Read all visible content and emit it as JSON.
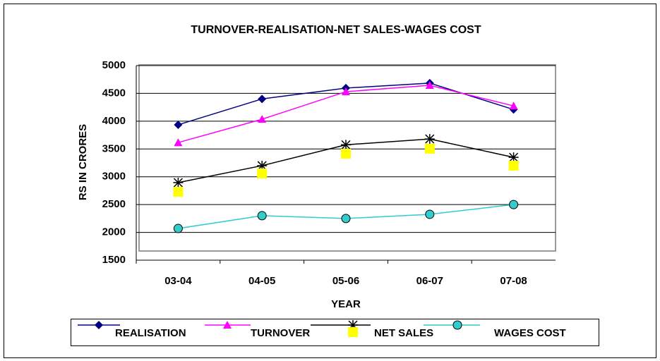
{
  "chart_data": {
    "type": "line",
    "title": "TURNOVER-REALISATION-NET SALES-WAGES COST",
    "x_label": "YEAR",
    "y_label": "RS IN CRORES",
    "categories": [
      "03-04",
      "04-05",
      "05-06",
      "06-07",
      "07-08"
    ],
    "series": [
      {
        "name": "REALISATION",
        "color": "#000080",
        "marker": "diamond",
        "line": true,
        "values": [
          3935,
          4400,
          4595,
          4685,
          4210
        ]
      },
      {
        "name": "TURNOVER",
        "color": "#ff00ff",
        "marker": "triangle",
        "line": true,
        "values": [
          3615,
          4035,
          4530,
          4645,
          4275
        ]
      },
      {
        "color": "#000000",
        "marker": "star",
        "line": true,
        "values": [
          2895,
          3200,
          3575,
          3680,
          3350
        ]
      },
      {
        "name": "NET SALES",
        "color": "#ffff00",
        "marker": "square",
        "line": false,
        "values": [
          2730,
          3060,
          3415,
          3505,
          3200
        ]
      },
      {
        "name": "WAGES COST",
        "color": "#33cccc",
        "marker": "circle",
        "line": true,
        "values": [
          2070,
          2300,
          2250,
          2325,
          2500
        ]
      }
    ],
    "ylim": [
      1500,
      5000
    ],
    "yticks": [
      1500,
      2000,
      2500,
      3000,
      3500,
      4000,
      4500,
      5000
    ],
    "grid": true
  }
}
